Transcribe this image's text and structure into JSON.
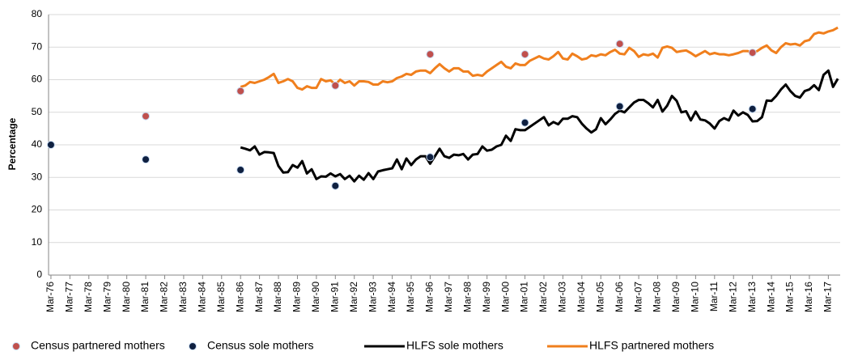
{
  "chart_data": {
    "type": "line",
    "y_label": "Percentage",
    "ylim": [
      0,
      80
    ],
    "yticks": [
      0,
      10,
      20,
      30,
      40,
      50,
      60,
      70,
      80
    ],
    "grid": true,
    "legend": "bottom",
    "categories": [
      "Mar-76",
      null,
      null,
      null,
      "Mar-77",
      null,
      null,
      null,
      "Mar-78",
      null,
      null,
      null,
      "Mar-79",
      null,
      null,
      null,
      "Mar-80",
      null,
      null,
      null,
      "Mar-81",
      null,
      null,
      null,
      "Mar-82",
      null,
      null,
      null,
      "Mar-83",
      null,
      null,
      null,
      "Mar-84",
      null,
      null,
      null,
      "Mar-85",
      null,
      null,
      null,
      "Mar-86",
      null,
      null,
      null,
      "Mar-87",
      null,
      null,
      null,
      "Mar-88",
      null,
      null,
      null,
      "Mar-89",
      null,
      null,
      null,
      "Mar-90",
      null,
      null,
      null,
      "Mar-91",
      null,
      null,
      null,
      "Mar-92",
      null,
      null,
      null,
      "Mar-93",
      null,
      null,
      null,
      "Mar-94",
      null,
      null,
      null,
      "Mar-95",
      null,
      null,
      null,
      "Mar-96",
      null,
      null,
      null,
      "Mar-97",
      null,
      null,
      null,
      "Mar-98",
      null,
      null,
      null,
      "Mar-99",
      null,
      null,
      null,
      "Mar-00",
      null,
      null,
      null,
      "Mar-01",
      null,
      null,
      null,
      "Mar-02",
      null,
      null,
      null,
      "Mar-03",
      null,
      null,
      null,
      "Mar-04",
      null,
      null,
      null,
      "Mar-05",
      null,
      null,
      null,
      "Mar-06",
      null,
      null,
      null,
      "Mar-07",
      null,
      null,
      null,
      "Mar-08",
      null,
      null,
      null,
      "Mar-09",
      null,
      null,
      null,
      "Mar-10",
      null,
      null,
      null,
      "Mar-11",
      null,
      null,
      null,
      "Mar-12",
      null,
      null,
      null,
      "Mar-13",
      null,
      null,
      null,
      "Mar-14",
      null,
      null,
      null,
      "Mar-15",
      null,
      null,
      null,
      "Mar-16",
      null,
      null,
      null,
      "Mar-17",
      null,
      null
    ],
    "series": [
      {
        "name": "Census partnered mothers",
        "color": "#c0504d",
        "mode": "markers",
        "values": [
          null,
          null,
          null,
          null,
          null,
          null,
          null,
          null,
          null,
          null,
          null,
          null,
          null,
          null,
          null,
          null,
          null,
          null,
          null,
          null,
          48.8,
          null,
          null,
          null,
          null,
          null,
          null,
          null,
          null,
          null,
          null,
          null,
          null,
          null,
          null,
          null,
          null,
          null,
          null,
          null,
          56.5,
          null,
          null,
          null,
          null,
          null,
          null,
          null,
          null,
          null,
          null,
          null,
          null,
          null,
          null,
          null,
          null,
          null,
          null,
          null,
          58.2,
          null,
          null,
          null,
          null,
          null,
          null,
          null,
          null,
          null,
          null,
          null,
          null,
          null,
          null,
          null,
          null,
          null,
          null,
          null,
          67.8,
          null,
          null,
          null,
          null,
          null,
          null,
          null,
          null,
          null,
          null,
          null,
          null,
          null,
          null,
          null,
          null,
          null,
          null,
          null,
          67.8,
          null,
          null,
          null,
          null,
          null,
          null,
          null,
          null,
          null,
          null,
          null,
          null,
          null,
          null,
          null,
          null,
          null,
          null,
          null,
          71,
          null,
          null,
          null,
          null,
          null,
          null,
          null,
          null,
          null,
          null,
          null,
          null,
          null,
          null,
          null,
          null,
          null,
          null,
          null,
          null,
          null,
          null,
          null,
          null,
          null,
          null,
          null,
          68.3,
          null,
          null,
          null,
          null,
          null,
          null,
          null,
          null,
          null,
          null,
          null,
          null,
          null,
          null,
          null,
          null,
          null,
          null
        ]
      },
      {
        "name": "Census sole mothers",
        "color": "#0f2040",
        "mode": "markers",
        "values": [
          40,
          null,
          null,
          null,
          null,
          null,
          null,
          null,
          null,
          null,
          null,
          null,
          null,
          null,
          null,
          null,
          null,
          null,
          null,
          null,
          35.5,
          null,
          null,
          null,
          null,
          null,
          null,
          null,
          null,
          null,
          null,
          null,
          null,
          null,
          null,
          null,
          null,
          null,
          null,
          null,
          32.3,
          null,
          null,
          null,
          null,
          null,
          null,
          null,
          null,
          null,
          null,
          null,
          null,
          null,
          null,
          null,
          null,
          null,
          null,
          null,
          27.4,
          null,
          null,
          null,
          null,
          null,
          null,
          null,
          null,
          null,
          null,
          null,
          null,
          null,
          null,
          null,
          null,
          null,
          null,
          null,
          36.2,
          null,
          null,
          null,
          null,
          null,
          null,
          null,
          null,
          null,
          null,
          null,
          null,
          null,
          null,
          null,
          null,
          null,
          null,
          null,
          46.8,
          null,
          null,
          null,
          null,
          null,
          null,
          null,
          null,
          null,
          null,
          null,
          null,
          null,
          null,
          null,
          null,
          null,
          null,
          null,
          51.8,
          null,
          null,
          null,
          null,
          null,
          null,
          null,
          null,
          null,
          null,
          null,
          null,
          null,
          null,
          null,
          null,
          null,
          null,
          null,
          null,
          null,
          null,
          null,
          null,
          null,
          null,
          null,
          51,
          null,
          null,
          null,
          null,
          null,
          null,
          null,
          null,
          null,
          null,
          null,
          null,
          null,
          null,
          null,
          null,
          null,
          null
        ]
      },
      {
        "name": "HLFS sole mothers",
        "color": "#000000",
        "mode": "line",
        "values": [
          null,
          null,
          null,
          null,
          null,
          null,
          null,
          null,
          null,
          null,
          null,
          null,
          null,
          null,
          null,
          null,
          null,
          null,
          null,
          null,
          null,
          null,
          null,
          null,
          null,
          null,
          null,
          null,
          null,
          null,
          null,
          null,
          null,
          null,
          null,
          null,
          null,
          null,
          null,
          null,
          39.2,
          38.8,
          38.3,
          39.5,
          37,
          37.8,
          37.7,
          37.5,
          33.5,
          31.5,
          31.6,
          33.8,
          33,
          35,
          31.2,
          32.5,
          29.5,
          30.3,
          30.2,
          31.2,
          30.3,
          31,
          29.5,
          30.5,
          28.8,
          30.5,
          29.3,
          31.3,
          29.5,
          31.8,
          32.2,
          32.5,
          32.8,
          35.5,
          32.5,
          35.8,
          33.8,
          35.5,
          36.5,
          36.5,
          34.2,
          36.5,
          38.8,
          36.5,
          36,
          37,
          36.8,
          37.2,
          35.5,
          37,
          37.2,
          39.5,
          38.2,
          38.5,
          39.5,
          40,
          42.8,
          41.2,
          44.8,
          44.5,
          44.5,
          45.5,
          46.5,
          47.5,
          48.5,
          46,
          47,
          46.3,
          48,
          48,
          48.8,
          48.5,
          46.5,
          45,
          43.8,
          44.8,
          48.2,
          46.3,
          47.8,
          49.5,
          50.5,
          50,
          51.5,
          53,
          53.8,
          53.8,
          52.8,
          51.5,
          53.8,
          50.2,
          52,
          55,
          53.5,
          50,
          50.3,
          47.5,
          50.2,
          47.8,
          47.5,
          46.5,
          45,
          47.3,
          48.2,
          47.5,
          50.5,
          49,
          50,
          49.2,
          47.2,
          47.3,
          48.5,
          53.6,
          53.5,
          55,
          57,
          58.5,
          56.5,
          55,
          54.5,
          56.5,
          57,
          58.3,
          56.8,
          61.5,
          62.8,
          57.8,
          60.3
        ]
      },
      {
        "name": "HLFS partnered mothers",
        "color": "#f07f1d",
        "mode": "line",
        "values": [
          null,
          null,
          null,
          null,
          null,
          null,
          null,
          null,
          null,
          null,
          null,
          null,
          null,
          null,
          null,
          null,
          null,
          null,
          null,
          null,
          null,
          null,
          null,
          null,
          null,
          null,
          null,
          null,
          null,
          null,
          null,
          null,
          null,
          null,
          null,
          null,
          null,
          null,
          null,
          null,
          57.8,
          58.2,
          59.3,
          59,
          59.5,
          60,
          60.8,
          61.8,
          59,
          59.5,
          60.2,
          59.5,
          57.5,
          57,
          58,
          57.5,
          57.5,
          60.2,
          59.5,
          59.8,
          58.5,
          60,
          59,
          59.5,
          58.2,
          59.5,
          59.5,
          59.3,
          58.5,
          58.5,
          59.5,
          59.2,
          59.5,
          60.5,
          61,
          61.8,
          61.5,
          62.5,
          62.8,
          62.8,
          62,
          63.5,
          64.8,
          63.5,
          62.5,
          63.5,
          63.5,
          62.5,
          62.5,
          61.2,
          61.5,
          61.2,
          62.5,
          63.5,
          64.5,
          65.5,
          64,
          63.5,
          65,
          64.5,
          64.5,
          65.8,
          66.5,
          67.2,
          66.5,
          66.2,
          67.2,
          68.5,
          66.5,
          66.2,
          68,
          67.2,
          66.2,
          66.5,
          67.5,
          67.2,
          67.8,
          67.5,
          68.5,
          69.2,
          68,
          67.8,
          69.8,
          68.8,
          67,
          67.8,
          67.5,
          68,
          66.8,
          69.8,
          70.2,
          69.8,
          68.5,
          68.8,
          69,
          68.2,
          67.2,
          68,
          68.8,
          67.8,
          68.2,
          67.8,
          67.8,
          67.5,
          67.8,
          68.2,
          68.8,
          68.8,
          68.2,
          68.8,
          69.8,
          70.5,
          69,
          68.2,
          70,
          71.2,
          70.8,
          71,
          70.5,
          71.8,
          72.2,
          74,
          74.5,
          74.2,
          74.8,
          75.2,
          76
        ]
      }
    ]
  }
}
